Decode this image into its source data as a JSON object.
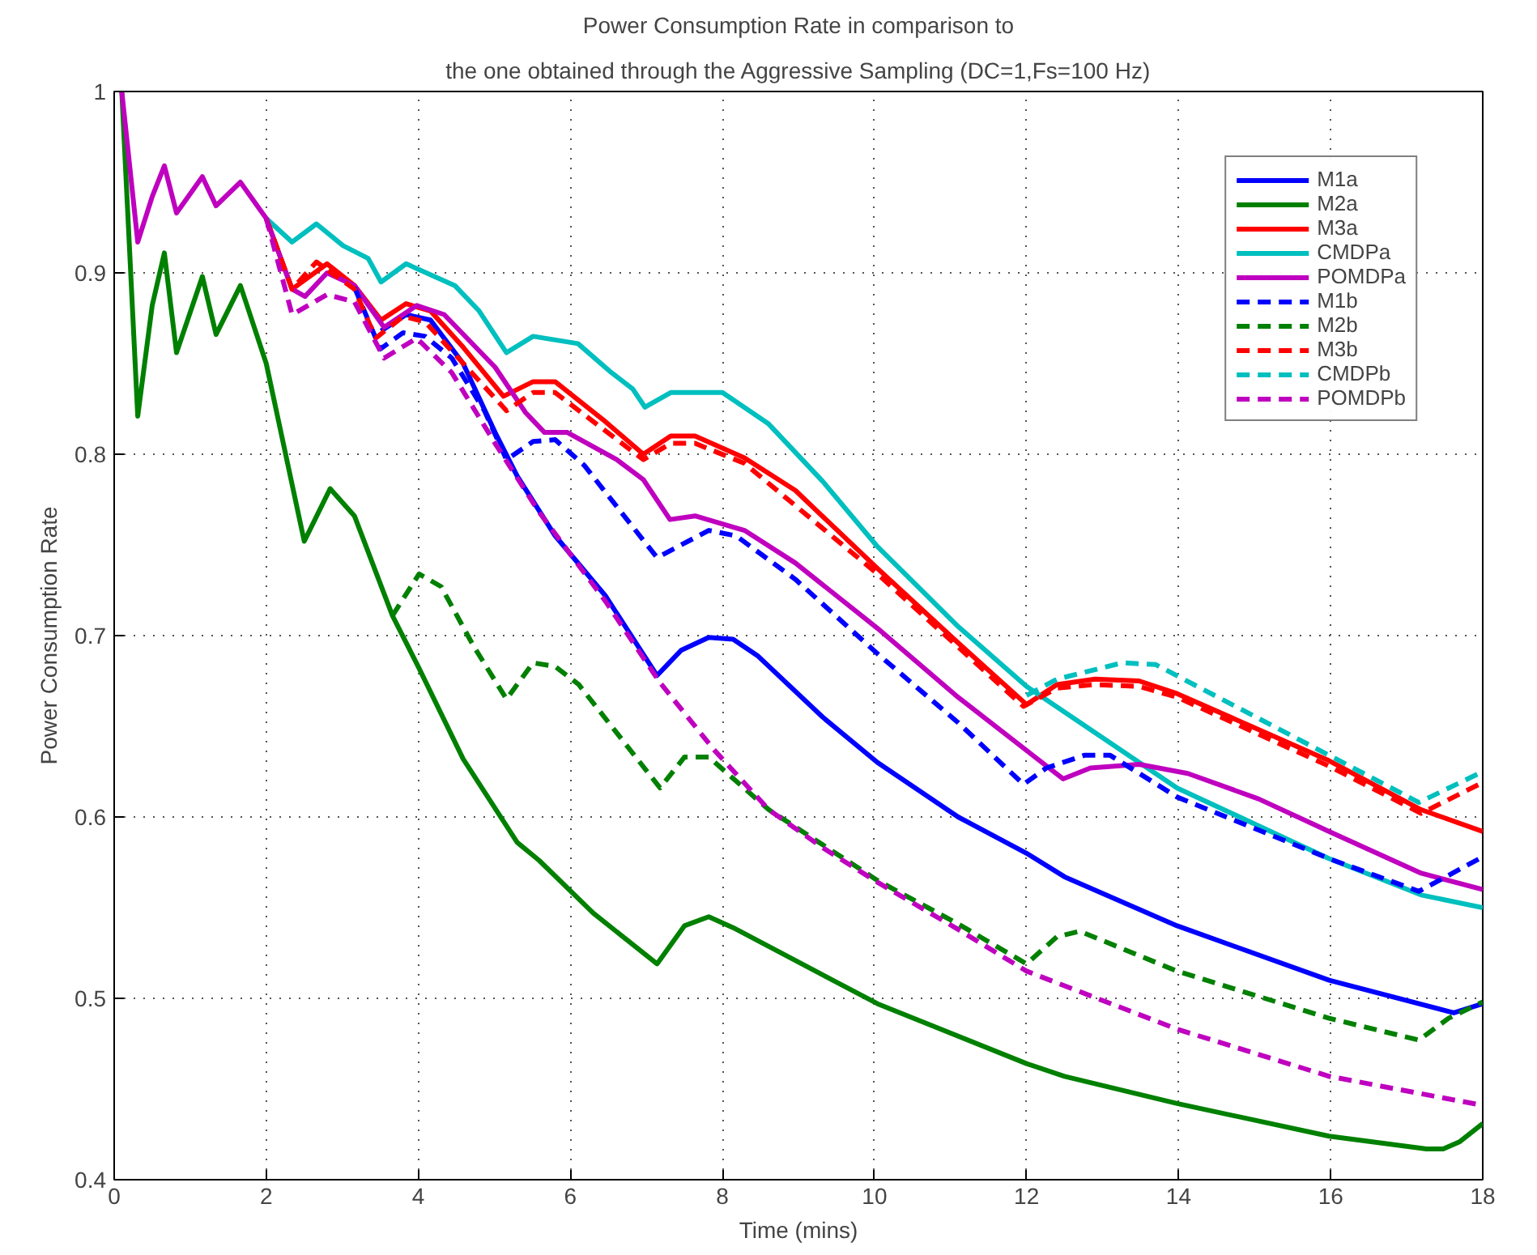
{
  "chart_data": {
    "type": "line",
    "title": "Power Consumption Rate in comparison to",
    "subtitle": "the one obtained through the Aggressive Sampling (DC=1,Fs=100 Hz)",
    "xlabel": "Time (mins)",
    "ylabel": "Power Consumption Rate",
    "xlim": [
      0,
      18
    ],
    "ylim": [
      0.4,
      1
    ],
    "xticks": [
      0,
      2,
      4,
      6,
      8,
      10,
      12,
      14,
      16,
      18
    ],
    "yticks": [
      0.4,
      0.5,
      0.6,
      0.7,
      0.8,
      0.9,
      1
    ],
    "grid": true,
    "legend": "top right",
    "series": [
      {
        "name": "M1a",
        "color": "#0000ff",
        "line_style": "solid",
        "x": [
          3.51,
          3.84,
          4.16,
          4.59,
          5.01,
          5.3,
          5.8,
          6.46,
          7.14,
          7.46,
          7.82,
          8.14,
          8.46,
          9.32,
          10.04,
          11.1,
          12,
          12.5,
          13.98,
          15.98,
          17.62,
          18
        ],
        "values": [
          0.868,
          0.877,
          0.874,
          0.85,
          0.812,
          0.788,
          0.755,
          0.722,
          0.678,
          0.692,
          0.699,
          0.698,
          0.689,
          0.655,
          0.63,
          0.6,
          0.58,
          0.567,
          0.54,
          0.51,
          0.492,
          0.497
        ]
      },
      {
        "name": "M2a",
        "color": "#008000",
        "line_style": "solid",
        "x": [
          0.1,
          0.31,
          0.5,
          0.66,
          0.82,
          1.16,
          1.34,
          1.66,
          2.0,
          2.5,
          2.84,
          3.16,
          3.66,
          4.01,
          4.59,
          5.3,
          5.59,
          6.3,
          7.14,
          7.5,
          7.82,
          8.14,
          10.04,
          12,
          12.5,
          13.98,
          15.98,
          17.26,
          17.48,
          17.7,
          18
        ],
        "values": [
          1.0,
          0.821,
          0.882,
          0.911,
          0.856,
          0.898,
          0.866,
          0.893,
          0.85,
          0.752,
          0.781,
          0.766,
          0.711,
          0.682,
          0.632,
          0.586,
          0.576,
          0.547,
          0.519,
          0.54,
          0.545,
          0.539,
          0.497,
          0.464,
          0.457,
          0.442,
          0.424,
          0.417,
          0.417,
          0.421,
          0.431
        ]
      },
      {
        "name": "M3a",
        "color": "#ff0000",
        "line_style": "solid",
        "x": [
          2.0,
          2.34,
          2.8,
          3.16,
          3.51,
          3.84,
          4.16,
          4.59,
          5.12,
          5.51,
          5.8,
          6.46,
          6.96,
          7.32,
          7.64,
          8.29,
          8.96,
          10.04,
          11.1,
          12,
          12.4,
          12.9,
          13.48,
          13.98,
          15.98,
          17.19,
          18
        ],
        "values": [
          0.93,
          0.891,
          0.905,
          0.893,
          0.874,
          0.883,
          0.879,
          0.859,
          0.832,
          0.84,
          0.84,
          0.818,
          0.8,
          0.81,
          0.81,
          0.798,
          0.78,
          0.737,
          0.696,
          0.662,
          0.673,
          0.676,
          0.675,
          0.668,
          0.631,
          0.604,
          0.592
        ]
      },
      {
        "name": "CMDPa",
        "color": "#00bfbf",
        "line_style": "solid",
        "x": [
          2.0,
          2.34,
          2.66,
          3.01,
          3.34,
          3.51,
          3.84,
          4.48,
          4.8,
          5.16,
          5.51,
          6.1,
          6.54,
          6.82,
          6.98,
          7.32,
          8.0,
          8.6,
          9.32,
          10.04,
          11.1,
          12,
          13.98,
          15.98,
          17.19,
          18
        ],
        "values": [
          0.93,
          0.917,
          0.927,
          0.915,
          0.908,
          0.895,
          0.905,
          0.893,
          0.879,
          0.856,
          0.865,
          0.861,
          0.845,
          0.836,
          0.826,
          0.834,
          0.834,
          0.817,
          0.785,
          0.749,
          0.705,
          0.672,
          0.616,
          0.577,
          0.557,
          0.55
        ]
      },
      {
        "name": "POMDPa",
        "color": "#bf00bf",
        "line_style": "solid",
        "x": [
          0.1,
          0.31,
          0.5,
          0.66,
          0.82,
          1.16,
          1.34,
          1.66,
          2.0,
          2.34,
          2.51,
          2.8,
          3.16,
          3.55,
          3.98,
          4.34,
          5.01,
          5.41,
          5.66,
          5.96,
          6.61,
          6.96,
          7.31,
          7.64,
          8.29,
          8.96,
          10.04,
          11.1,
          12.48,
          12.84,
          13.48,
          14.12,
          15.05,
          15.98,
          17.19,
          18
        ],
        "values": [
          1.0,
          0.917,
          0.942,
          0.959,
          0.933,
          0.953,
          0.937,
          0.95,
          0.93,
          0.891,
          0.887,
          0.9,
          0.893,
          0.87,
          0.882,
          0.877,
          0.848,
          0.823,
          0.812,
          0.812,
          0.797,
          0.786,
          0.764,
          0.766,
          0.758,
          0.74,
          0.704,
          0.666,
          0.621,
          0.627,
          0.629,
          0.624,
          0.61,
          0.592,
          0.569,
          0.56
        ]
      },
      {
        "name": "M1b",
        "color": "#0000ff",
        "line_style": "dashed",
        "x": [
          3.16,
          3.5,
          3.8,
          4.09,
          4.44,
          4.87,
          5.16,
          5.51,
          5.8,
          6.18,
          7.14,
          7.82,
          8.18,
          8.96,
          10.04,
          11.1,
          11.96,
          12.26,
          12.76,
          13.1,
          13.98,
          15.98,
          17.16,
          18
        ],
        "values": [
          0.892,
          0.858,
          0.867,
          0.865,
          0.853,
          0.824,
          0.797,
          0.807,
          0.808,
          0.794,
          0.743,
          0.758,
          0.755,
          0.731,
          0.69,
          0.652,
          0.618,
          0.627,
          0.634,
          0.634,
          0.611,
          0.577,
          0.559,
          0.578
        ]
      },
      {
        "name": "M2b",
        "color": "#008000",
        "line_style": "dashed",
        "x": [
          3.66,
          4.01,
          4.3,
          4.73,
          5.16,
          5.51,
          5.8,
          6.11,
          7.18,
          7.5,
          7.82,
          8.61,
          10.04,
          11.1,
          12,
          12.4,
          12.7,
          13.98,
          15.98,
          17.16,
          17.55,
          18
        ],
        "values": [
          0.711,
          0.734,
          0.727,
          0.694,
          0.665,
          0.685,
          0.683,
          0.673,
          0.616,
          0.633,
          0.633,
          0.604,
          0.565,
          0.541,
          0.519,
          0.534,
          0.537,
          0.515,
          0.489,
          0.477,
          0.489,
          0.498
        ]
      },
      {
        "name": "M3b",
        "color": "#ff0000",
        "line_style": "dashed",
        "x": [
          2.0,
          2.34,
          2.66,
          3.16,
          3.44,
          3.8,
          4.09,
          5.16,
          5.51,
          5.8,
          6.96,
          7.32,
          7.64,
          8.29,
          10.04,
          11.96,
          12.4,
          12.9,
          13.48,
          13.98,
          15.98,
          17.19,
          18
        ],
        "values": [
          0.93,
          0.891,
          0.906,
          0.891,
          0.864,
          0.876,
          0.873,
          0.824,
          0.834,
          0.834,
          0.797,
          0.806,
          0.806,
          0.795,
          0.734,
          0.661,
          0.671,
          0.673,
          0.672,
          0.666,
          0.628,
          0.602,
          0.619
        ]
      },
      {
        "name": "CMDPb",
        "color": "#00bfbf",
        "line_style": "dashed",
        "x": [
          12,
          12.4,
          13.26,
          13.7,
          14.2,
          15.98,
          17.16,
          18
        ],
        "values": [
          0.667,
          0.676,
          0.685,
          0.684,
          0.673,
          0.634,
          0.608,
          0.625
        ]
      },
      {
        "name": "POMDPb",
        "color": "#bf00bf",
        "line_style": "dashed",
        "x": [
          2.0,
          2.34,
          2.8,
          3.16,
          3.55,
          3.98,
          4.44,
          5.01,
          5.59,
          6.46,
          7.18,
          7.89,
          8.61,
          9.32,
          10.04,
          11.1,
          12,
          13.98,
          15.98,
          18
        ],
        "values": [
          0.93,
          0.877,
          0.888,
          0.884,
          0.853,
          0.864,
          0.845,
          0.806,
          0.768,
          0.719,
          0.674,
          0.637,
          0.604,
          0.583,
          0.564,
          0.538,
          0.515,
          0.483,
          0.457,
          0.441
        ]
      }
    ]
  }
}
